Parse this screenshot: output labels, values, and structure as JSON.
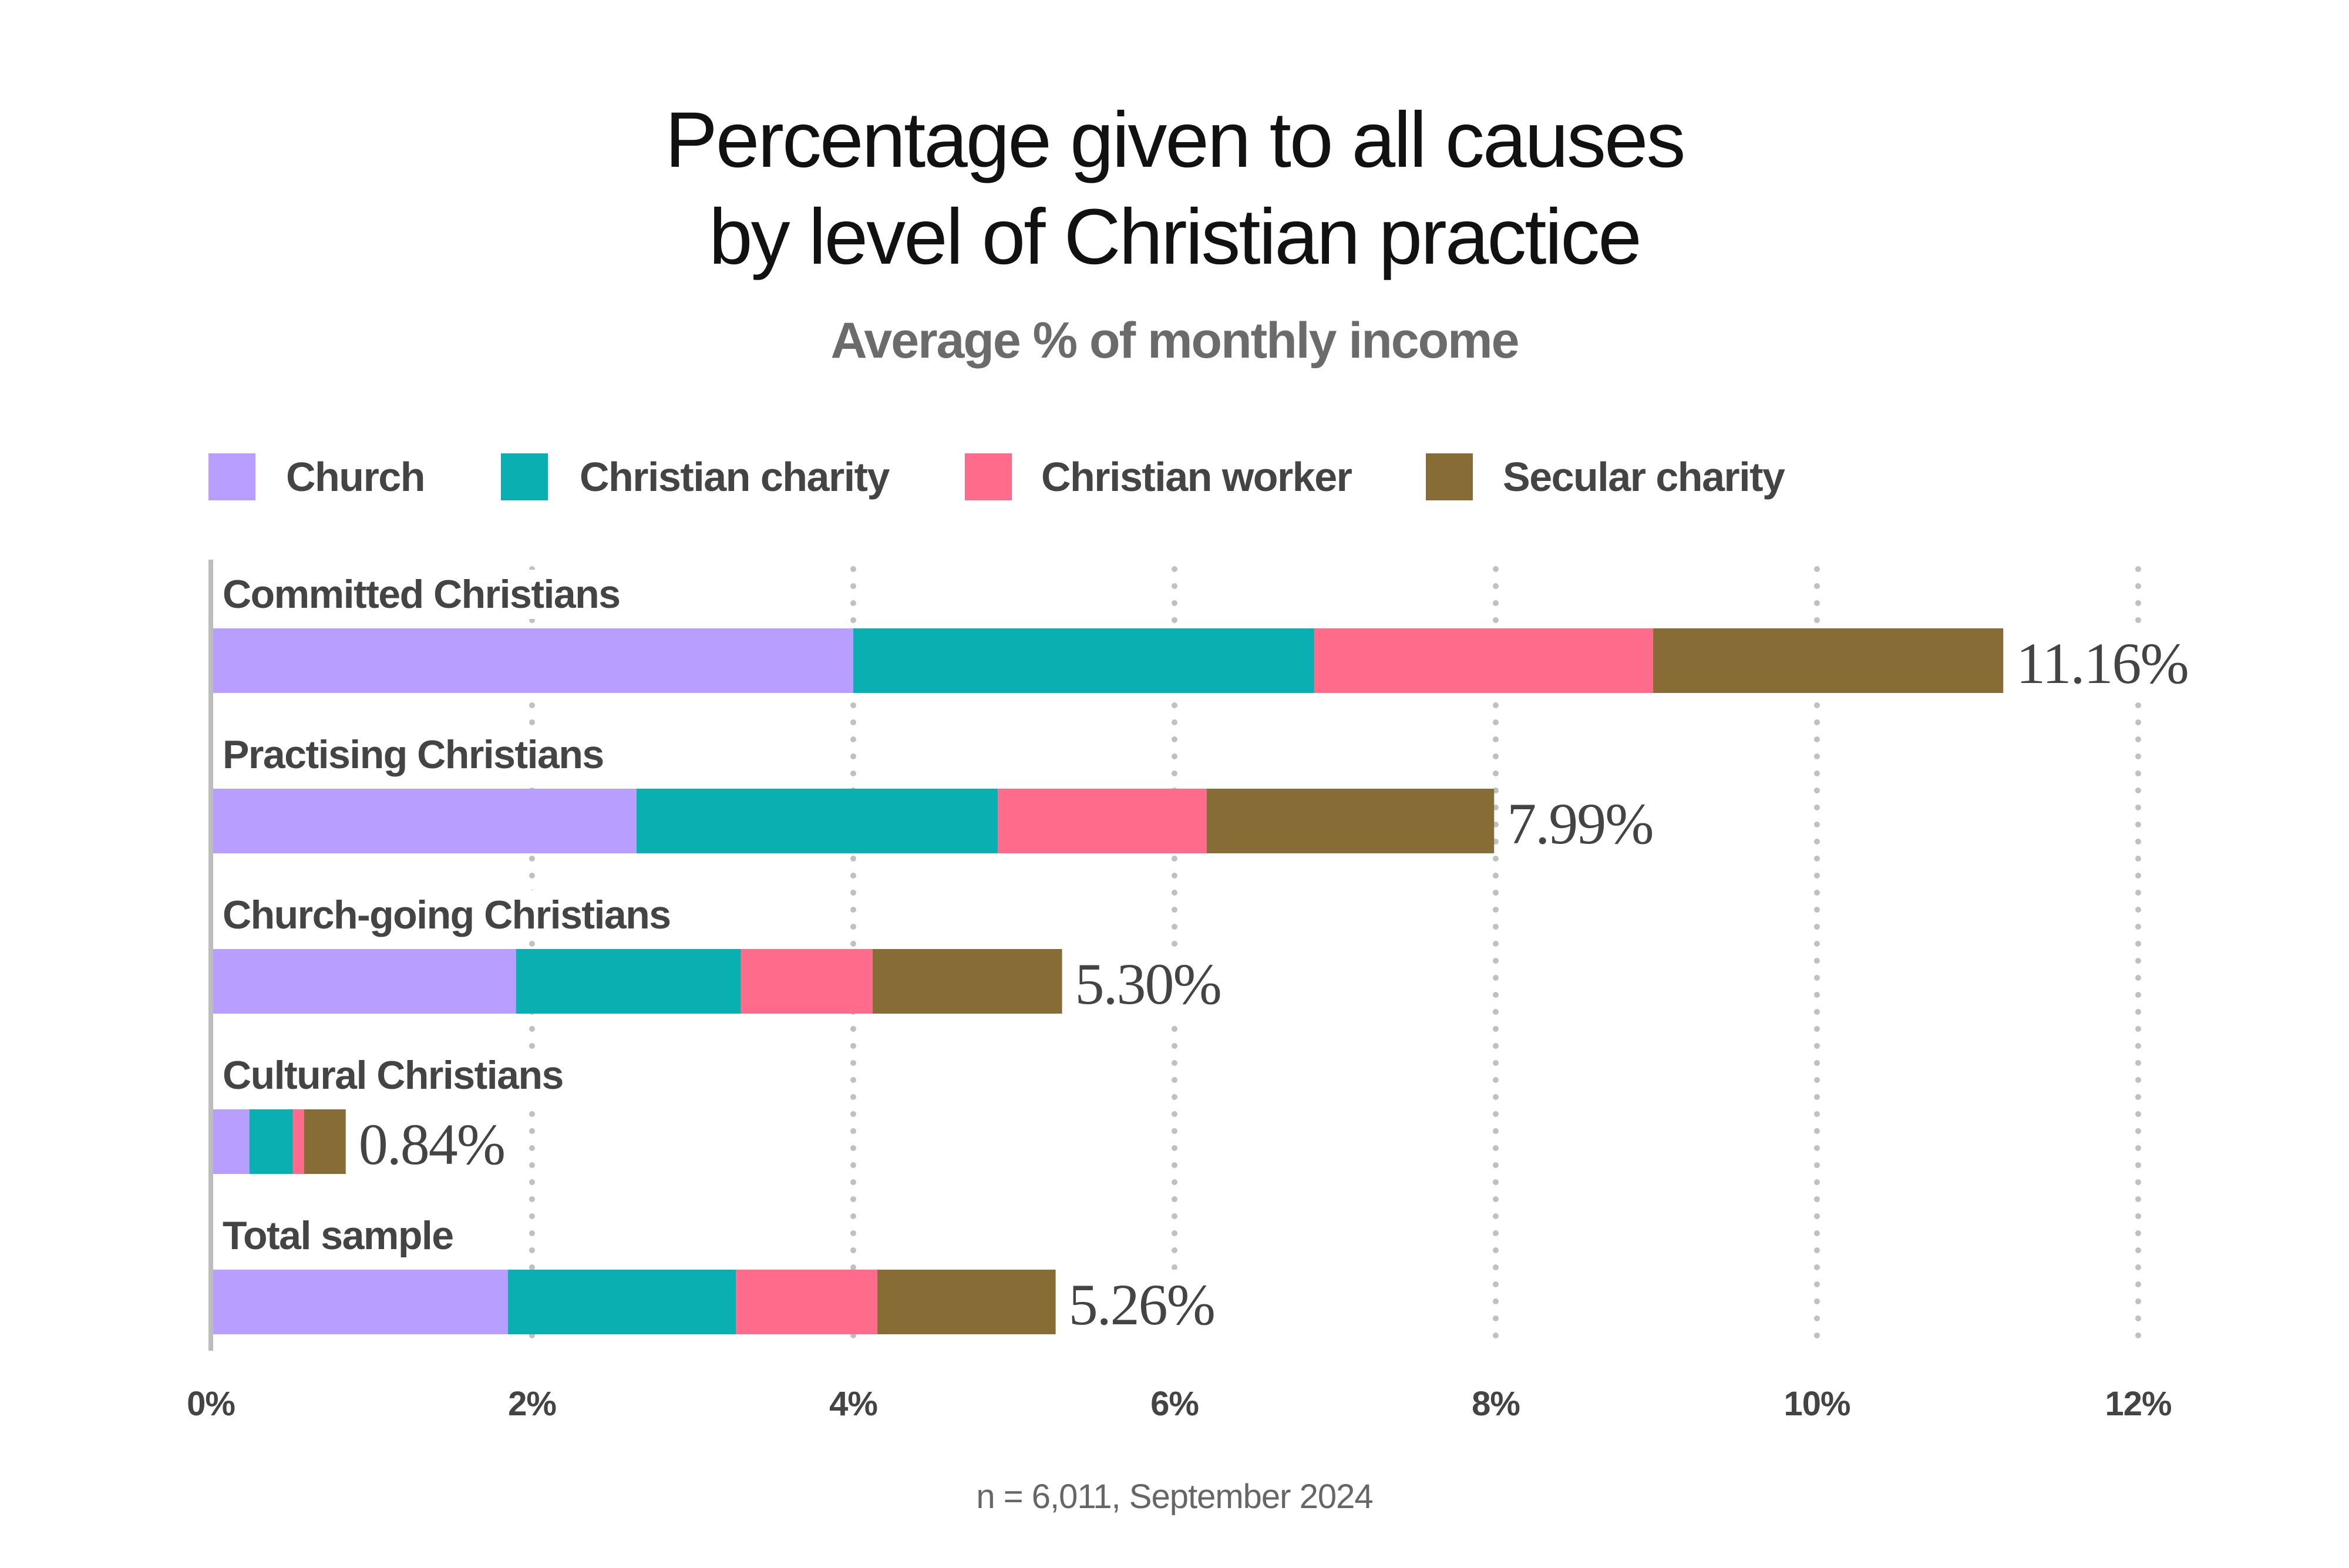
{
  "chart_data": {
    "type": "bar",
    "orientation": "horizontal",
    "stacked": true,
    "title": "Percentage given to all causes by level of Christian practice",
    "title_lines": [
      "Percentage given to all causes",
      "by level of Christian practice"
    ],
    "subtitle": "Average % of monthly income",
    "xlabel": "",
    "ylabel": "",
    "xlim": [
      0,
      12
    ],
    "x_ticks": [
      0,
      2,
      4,
      6,
      8,
      10,
      12
    ],
    "x_tick_labels": [
      "0%",
      "2%",
      "4%",
      "6%",
      "8%",
      "10%",
      "12%"
    ],
    "grid": "vertical dotted",
    "legend_position": "top-left",
    "categories": [
      "Committed Christians",
      "Practising Christians",
      "Church-going Christians",
      "Cultural Christians",
      "Total sample"
    ],
    "series": [
      {
        "name": "Church",
        "color": "#b89efe",
        "values": [
          4.0,
          2.65,
          1.9,
          0.24,
          1.85
        ]
      },
      {
        "name": "Christian charity",
        "color": "#0ab0b1",
        "values": [
          2.87,
          2.25,
          1.4,
          0.27,
          1.42
        ]
      },
      {
        "name": "Christian worker",
        "color": "#ff6c8b",
        "values": [
          2.11,
          1.3,
          0.82,
          0.07,
          0.88
        ]
      },
      {
        "name": "Secular charity",
        "color": "#876d35",
        "values": [
          2.18,
          1.79,
          1.18,
          0.26,
          1.11
        ]
      }
    ],
    "totals": [
      11.16,
      7.99,
      5.3,
      0.84,
      5.26
    ],
    "total_labels": [
      "11.16%",
      "7.99%",
      "5.30%",
      "0.84%",
      "5.26%"
    ],
    "footnote": "n = 6,011, September 2024"
  }
}
